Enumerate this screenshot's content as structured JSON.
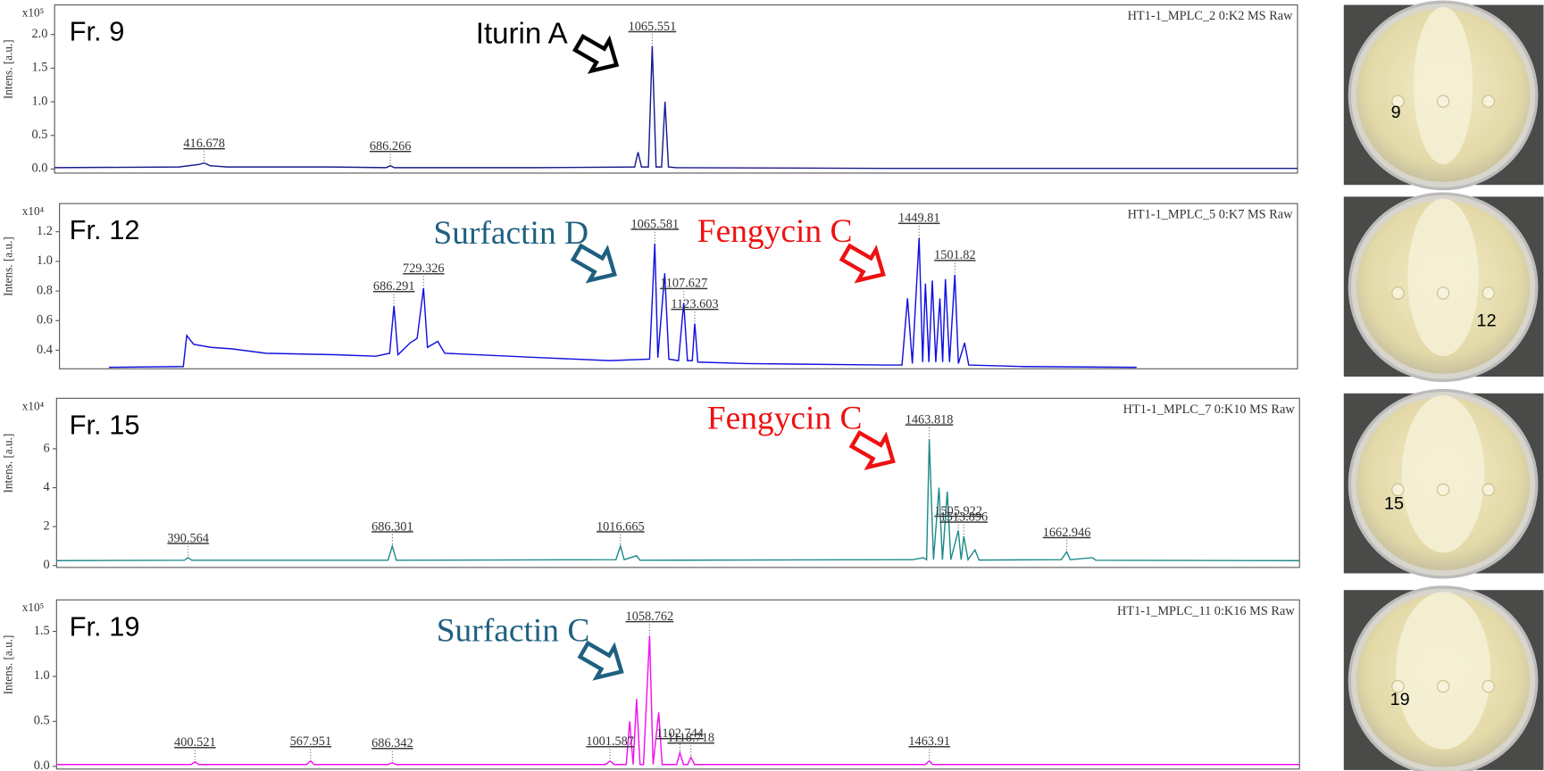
{
  "chart_data": [
    {
      "type": "line",
      "panel_label": "Fr. 9",
      "title": "HT1-1_MPLC_2 0:K2 MS Raw",
      "ylabel": "Intens. [a.u.]",
      "y_multiplier": "x10⁵",
      "annotations": [
        {
          "text": "Iturin A",
          "color": "#000000"
        }
      ],
      "plate_label": "9",
      "color": "#1a1a8c",
      "xlim": [
        200,
        2000
      ],
      "ylim": [
        -0.06,
        2.44
      ],
      "yticks": [
        {
          "value": 0,
          "label": "0.0"
        },
        0.5,
        {
          "value": 1,
          "label": "1.0"
        },
        1.5,
        {
          "value": 2,
          "label": "2.0"
        }
      ],
      "x": [
        200,
        380,
        410,
        416.678,
        425,
        450,
        600,
        680,
        686.266,
        692,
        900,
        1040,
        1045,
        1050,
        1060,
        1065.551,
        1071,
        1079,
        1084,
        1089,
        1100,
        1400,
        2000
      ],
      "values": [
        0.02,
        0.03,
        0.07,
        0.09,
        0.05,
        0.03,
        0.03,
        0.02,
        0.05,
        0.02,
        0.02,
        0.03,
        0.25,
        0.03,
        0.03,
        1.83,
        0.03,
        0.03,
        1.0,
        0.03,
        0.02,
        0.01,
        0.01
      ]
    },
    {
      "type": "line",
      "panel_label": "Fr. 12",
      "title": "HT1-1_MPLC_5 0:K7 MS Raw",
      "ylabel": "Intens. [a.u.]",
      "y_multiplier": "x10⁴",
      "annotations": [
        {
          "text": "Surfactin D",
          "color": "#1f6080"
        },
        {
          "text": "Fengycin C",
          "color": "#ee1111"
        }
      ],
      "plate_label": "12",
      "color": "#1010e0",
      "xlim": [
        200,
        2000
      ],
      "ylim": [
        0.275,
        1.39
      ],
      "yticks": [
        0.4,
        0.6,
        0.8,
        {
          "value": 1,
          "label": "1.0"
        },
        1.2
      ],
      "x": [
        272,
        380,
        385,
        395,
        420,
        450,
        500,
        600,
        660,
        680,
        686.291,
        692,
        710,
        720,
        729.326,
        735,
        750,
        760,
        900,
        1000,
        1058,
        1065.581,
        1070,
        1080,
        1086,
        1100,
        1107.627,
        1113,
        1120,
        1123.603,
        1128,
        1200,
        1400,
        1425,
        1433,
        1440,
        1449.81,
        1455,
        1459,
        1464,
        1469,
        1474,
        1480,
        1484,
        1488,
        1494,
        1501.82,
        1507,
        1516,
        1522,
        1600,
        1766
      ],
      "values": [
        0.285,
        0.29,
        0.5,
        0.44,
        0.42,
        0.41,
        0.38,
        0.37,
        0.36,
        0.38,
        0.7,
        0.37,
        0.45,
        0.48,
        0.82,
        0.42,
        0.46,
        0.38,
        0.35,
        0.33,
        0.34,
        1.12,
        0.35,
        0.92,
        0.34,
        0.33,
        0.72,
        0.33,
        0.33,
        0.58,
        0.32,
        0.31,
        0.3,
        0.3,
        0.75,
        0.31,
        1.16,
        0.32,
        0.85,
        0.32,
        0.87,
        0.32,
        0.75,
        0.32,
        0.88,
        0.32,
        0.91,
        0.31,
        0.45,
        0.3,
        0.29,
        0.285
      ]
    },
    {
      "type": "line",
      "panel_label": "Fr. 15",
      "title": "HT1-1_MPLC_7 0:K10 MS Raw",
      "ylabel": "Intens. [a.u.]",
      "y_multiplier": "x10⁴",
      "annotations": [
        {
          "text": "Fengycin C",
          "color": "#ee1111"
        }
      ],
      "plate_label": "15",
      "color": "#1f8a8a",
      "xlim": [
        200,
        2000
      ],
      "ylim": [
        -0.1,
        8.6
      ],
      "yticks": [
        0,
        2,
        4,
        6
      ],
      "x": [
        200,
        385,
        390.564,
        396,
        680,
        686.301,
        692,
        1010,
        1016.665,
        1022,
        1040,
        1045,
        1440,
        1455,
        1460,
        1463.818,
        1470,
        1478,
        1483,
        1490,
        1495,
        1505.922,
        1510,
        1513.896,
        1520,
        1530,
        1536,
        1655,
        1662.946,
        1668,
        1700,
        1705,
        2000
      ],
      "values": [
        0.25,
        0.27,
        0.4,
        0.27,
        0.27,
        1.0,
        0.27,
        0.3,
        1.0,
        0.3,
        0.5,
        0.27,
        0.3,
        0.4,
        0.3,
        6.5,
        0.3,
        4.0,
        0.3,
        3.8,
        0.3,
        1.8,
        0.3,
        1.5,
        0.3,
        0.8,
        0.28,
        0.3,
        0.7,
        0.3,
        0.4,
        0.27,
        0.25
      ]
    },
    {
      "type": "line",
      "panel_label": "Fr. 19",
      "title": "HT1-1_MPLC_11 0:K16 MS Raw",
      "ylabel": "Intens. [a.u.]",
      "y_multiplier": "x10⁵",
      "annotations": [
        {
          "text": "Surfactin C",
          "color": "#1f6080"
        }
      ],
      "plate_label": "19",
      "color": "#f010f0",
      "xlim": [
        200,
        2000
      ],
      "ylim": [
        -0.03,
        1.85
      ],
      "yticks": [
        {
          "value": 0,
          "label": "0.0"
        },
        0.5,
        {
          "value": 1,
          "label": "1.0"
        },
        1.5
      ],
      "x": [
        200,
        395,
        400.521,
        406,
        562,
        567.951,
        573,
        680,
        686.342,
        692,
        995,
        1001.587,
        1008,
        1025,
        1030,
        1035,
        1040,
        1045,
        1050,
        1058.762,
        1064,
        1072,
        1077,
        1098,
        1102.744,
        1108,
        1114,
        1118.718,
        1124,
        1458,
        1463.91,
        1469,
        2000
      ],
      "values": [
        0.02,
        0.02,
        0.05,
        0.02,
        0.02,
        0.06,
        0.02,
        0.02,
        0.04,
        0.02,
        0.02,
        0.06,
        0.02,
        0.02,
        0.5,
        0.02,
        0.75,
        0.02,
        0.02,
        1.45,
        0.02,
        0.6,
        0.02,
        0.02,
        0.15,
        0.02,
        0.02,
        0.1,
        0.02,
        0.02,
        0.06,
        0.02,
        0.02
      ]
    }
  ]
}
